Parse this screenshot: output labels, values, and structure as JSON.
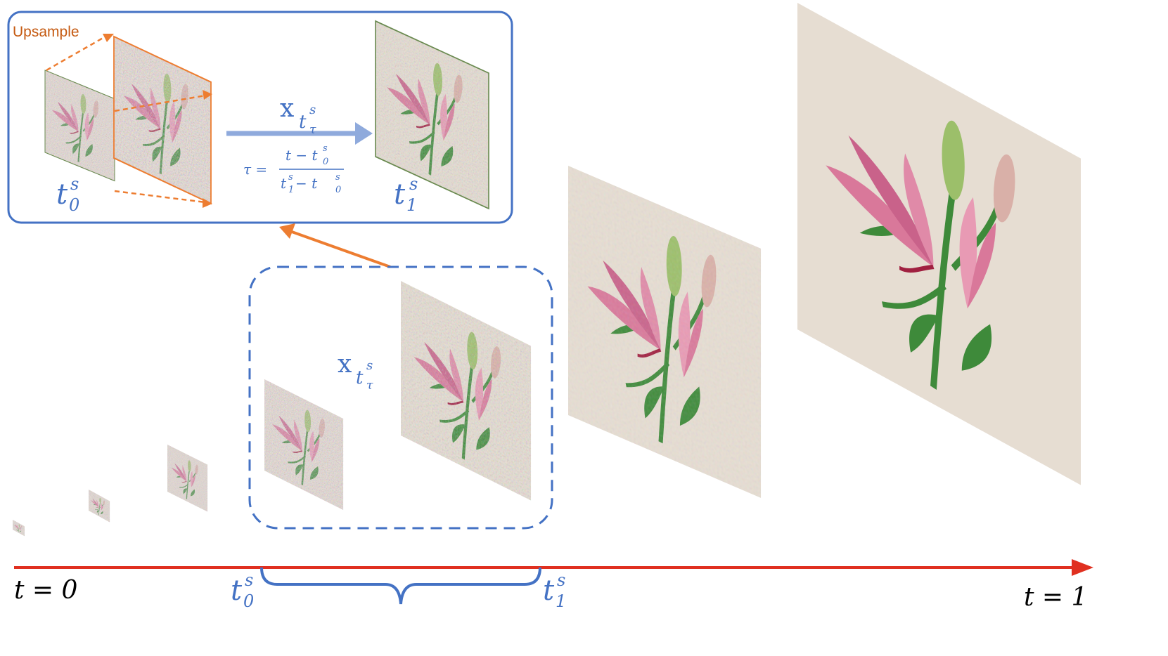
{
  "upsample_label": "Upsample",
  "latent_label": {
    "main": "x",
    "sub": "t",
    "subsub": "τ",
    "sup": "s"
  },
  "tau_formula": {
    "lhs": "τ =",
    "numerator": "t − t",
    "numerator_sub": "0",
    "numerator_sup": "s",
    "denominator": "t",
    "denominator_sub1": "1",
    "denominator_mid": " − t",
    "denominator_sub2": "0",
    "denominator_sup": "s"
  },
  "inset_t0": {
    "base": "t",
    "sub": "0",
    "sup": "s"
  },
  "inset_t1": {
    "base": "t",
    "sub": "1",
    "sup": "s"
  },
  "axis_start": "t = 0",
  "axis_end": "t = 1",
  "axis_t0": {
    "base": "t",
    "sub": "0",
    "sup": "s"
  },
  "axis_t1": {
    "base": "t",
    "sub": "1",
    "sup": "s"
  },
  "colors": {
    "blue": "#4472c4",
    "light_blue_arrow": "#8faadc",
    "orange": "#ed7d31",
    "red_axis": "#e03020",
    "petal": "#d9789a",
    "leaf": "#3e8a3a",
    "bg_clean": "#e8e0d6"
  },
  "stages": [
    {
      "name": "stage-1-smallest",
      "noise": "high"
    },
    {
      "name": "stage-2",
      "noise": "high"
    },
    {
      "name": "stage-3",
      "noise": "high"
    },
    {
      "name": "stage-4-t0",
      "noise": "high"
    },
    {
      "name": "stage-5-t1",
      "noise": "medium"
    },
    {
      "name": "stage-6",
      "noise": "low"
    },
    {
      "name": "stage-7-final",
      "noise": "none"
    }
  ]
}
